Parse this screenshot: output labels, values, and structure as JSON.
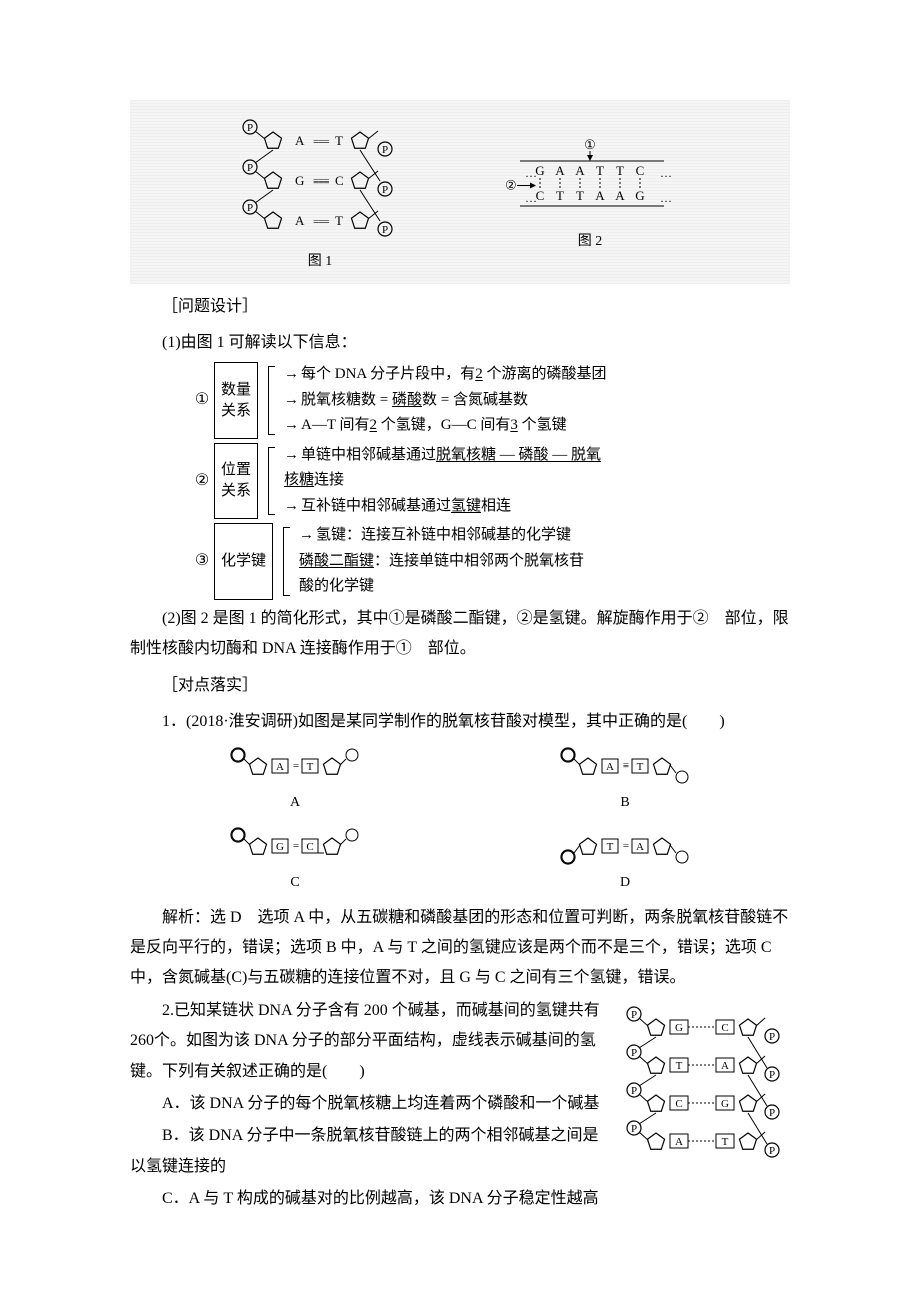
{
  "figureBlock": {
    "fig1": {
      "caption": "图 1",
      "nodes": [
        {
          "base1": "A",
          "bond": "===",
          "base2": "T"
        },
        {
          "base1": "G",
          "bond": "≡≡≡",
          "base2": "C"
        },
        {
          "base1": "A",
          "bond": "===",
          "base2": "T"
        }
      ],
      "phosphate_label": "P"
    },
    "fig2": {
      "caption": "图 2",
      "top": [
        "G",
        "A",
        "A",
        "T",
        "T",
        "C"
      ],
      "bottom": [
        "C",
        "T",
        "T",
        "A",
        "A",
        "G"
      ],
      "marker1": "①",
      "marker2": "②"
    }
  },
  "problemDesign": "［问题设计］",
  "q1_intro": "(1)由图 1 可解读以下信息：",
  "brackets": {
    "b1": {
      "num": "①",
      "box": [
        "数量",
        "关系"
      ],
      "lines": [
        {
          "pre": "每个 DNA 分子片段中，有",
          "u": "2",
          "post": " 个游离的磷酸基团"
        },
        {
          "pre": "脱氧核糖数 = ",
          "u": "磷酸",
          "post": "数 = 含氮碱基数"
        },
        {
          "pre": "A—T 间有",
          "u": "2",
          "mid": " 个氢键，G—C 间有",
          "u2": "3",
          "post": " 个氢键"
        }
      ]
    },
    "b2": {
      "num": "②",
      "box": [
        "位置",
        "关系"
      ],
      "lines": [
        {
          "pre": "单链中相邻碱基通过",
          "u": "脱氧核糖 — 磷酸 — 脱氧",
          "post": ""
        },
        {
          "pre": "",
          "u": "核糖",
          "post": "连接",
          "noarrow": true
        },
        {
          "pre": "互补链中相邻碱基通过",
          "u": "氢键",
          "post": "相连"
        }
      ]
    },
    "b3": {
      "num": "③",
      "box": [
        "化学键"
      ],
      "lines": [
        {
          "pre": "氢键：连接互补链中相邻碱基的化学键"
        },
        {
          "pre": "",
          "u": "磷酸二酯键",
          "post": "：连接单链中相邻两个脱氧核苷",
          "noarrow": true
        },
        {
          "pre": "酸的化学键",
          "noarrow": true
        }
      ]
    }
  },
  "q2_text": "(2)图 2 是图 1 的简化形式，其中①是磷酸二酯键，②是氢键。解旋酶作用于②　部位，限制性核酸内切酶和 DNA 连接酶作用于①　部位。",
  "dianluoshi": "［对点落实］",
  "q1": {
    "stem": "1．(2018·淮安调研)如图是某同学制作的脱氧核苷酸对模型，其中正确的是(　　)",
    "options": {
      "A": {
        "label": "A",
        "b1": "A",
        "bond": "=",
        "b2": "T",
        "flipR": false
      },
      "B": {
        "label": "B",
        "b1": "A",
        "bond": "≡",
        "b2": "T",
        "flipR": true
      },
      "C": {
        "label": "C",
        "b1": "G",
        "bond": "=",
        "b2": "C",
        "flipR": false,
        "lowC": true
      },
      "D": {
        "label": "D",
        "b1": "T",
        "bond": "=",
        "b2": "A",
        "flipR": true,
        "flipL": true
      }
    },
    "analysis": "解析：选 D　选项 A 中，从五碳糖和磷酸基团的形态和位置可判断，两条脱氧核苷酸链不是反向平行的，错误；选项 B 中，A 与 T 之间的氢键应该是两个而不是三个，错误；选项 C 中，含氮碱基(C)与五碳糖的连接位置不对，且 G 与 C 之间有三个氢键，错误。"
  },
  "q2": {
    "stem_a": "2.已知某链状 DNA 分子含有 200 个碱基，而碱基间的氢键共有 260个。如图为该 DNA 分子的部分平面结构，虚线表示碱基间的氢键。下列有关叙述正确的是(　　)",
    "optA": "A．该 DNA 分子的每个脱氧核糖上均连着两个磷酸和一个碱基",
    "optB": "B．该 DNA 分子中一条脱氧核苷酸链上的两个相邻碱基之间是以氢键连接的",
    "optC": "C．A 与 T 构成的碱基对的比例越高，该 DNA 分子稳定性越高",
    "rightFig": {
      "pairs": [
        {
          "b1": "G",
          "b2": "C"
        },
        {
          "b1": "T",
          "b2": "A"
        },
        {
          "b1": "C",
          "b2": "G"
        },
        {
          "b1": "A",
          "b2": "T"
        }
      ],
      "p_label": "P"
    }
  },
  "colors": {
    "text": "#000000",
    "bg": "#ffffff",
    "figBg": "#f0f0f0"
  }
}
